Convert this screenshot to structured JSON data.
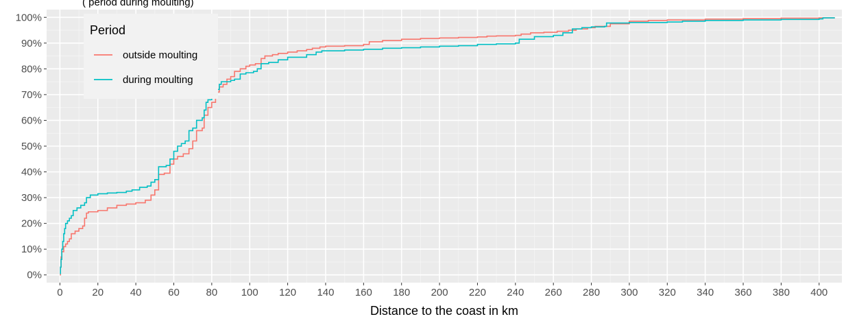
{
  "chart_data": {
    "type": "line",
    "title": "",
    "top_note": "(            period during moulting)",
    "xlabel": "Distance to the coast in km",
    "ylabel": "",
    "xlim": [
      -7,
      412
    ],
    "ylim": [
      -0.03,
      1.03
    ],
    "x_ticks": [
      0,
      20,
      40,
      60,
      80,
      100,
      120,
      140,
      160,
      180,
      200,
      220,
      240,
      260,
      280,
      300,
      320,
      340,
      360,
      380,
      400
    ],
    "y_ticks": [
      0,
      0.1,
      0.2,
      0.3,
      0.4,
      0.5,
      0.6,
      0.7,
      0.8,
      0.9,
      1.0
    ],
    "y_tick_labels": [
      "0%",
      "10%",
      "20%",
      "30%",
      "40%",
      "50%",
      "60%",
      "70%",
      "80%",
      "90%",
      "100%"
    ],
    "grid": true,
    "legend": {
      "title": "Period",
      "position": "top-left"
    },
    "series": [
      {
        "name": "outside moulting",
        "color": "#F8766D",
        "points": [
          [
            0,
            0.0
          ],
          [
            0.3,
            0.03
          ],
          [
            0.6,
            0.07
          ],
          [
            1,
            0.09
          ],
          [
            2,
            0.11
          ],
          [
            3,
            0.12
          ],
          [
            4,
            0.13
          ],
          [
            5,
            0.14
          ],
          [
            6,
            0.16
          ],
          [
            8,
            0.17
          ],
          [
            10,
            0.18
          ],
          [
            12,
            0.19
          ],
          [
            13,
            0.22
          ],
          [
            14,
            0.24
          ],
          [
            15,
            0.245
          ],
          [
            20,
            0.25
          ],
          [
            25,
            0.26
          ],
          [
            30,
            0.27
          ],
          [
            35,
            0.275
          ],
          [
            40,
            0.28
          ],
          [
            45,
            0.29
          ],
          [
            48,
            0.31
          ],
          [
            50,
            0.33
          ],
          [
            52,
            0.39
          ],
          [
            55,
            0.395
          ],
          [
            58,
            0.43
          ],
          [
            60,
            0.45
          ],
          [
            62,
            0.46
          ],
          [
            65,
            0.47
          ],
          [
            68,
            0.49
          ],
          [
            70,
            0.52
          ],
          [
            72,
            0.56
          ],
          [
            75,
            0.57
          ],
          [
            76,
            0.62
          ],
          [
            78,
            0.65
          ],
          [
            80,
            0.67
          ],
          [
            82,
            0.71
          ],
          [
            84,
            0.73
          ],
          [
            86,
            0.74
          ],
          [
            88,
            0.76
          ],
          [
            90,
            0.77
          ],
          [
            92,
            0.79
          ],
          [
            95,
            0.8
          ],
          [
            98,
            0.81
          ],
          [
            100,
            0.815
          ],
          [
            103,
            0.82
          ],
          [
            106,
            0.84
          ],
          [
            108,
            0.85
          ],
          [
            112,
            0.855
          ],
          [
            115,
            0.86
          ],
          [
            120,
            0.865
          ],
          [
            125,
            0.87
          ],
          [
            130,
            0.875
          ],
          [
            133,
            0.88
          ],
          [
            137,
            0.885
          ],
          [
            140,
            0.888
          ],
          [
            150,
            0.89
          ],
          [
            160,
            0.895
          ],
          [
            163,
            0.905
          ],
          [
            170,
            0.91
          ],
          [
            180,
            0.915
          ],
          [
            190,
            0.918
          ],
          [
            200,
            0.92
          ],
          [
            210,
            0.922
          ],
          [
            220,
            0.924
          ],
          [
            225,
            0.927
          ],
          [
            230,
            0.928
          ],
          [
            240,
            0.93
          ],
          [
            243,
            0.935
          ],
          [
            248,
            0.94
          ],
          [
            255,
            0.942
          ],
          [
            262,
            0.946
          ],
          [
            268,
            0.95
          ],
          [
            272,
            0.955
          ],
          [
            278,
            0.96
          ],
          [
            282,
            0.965
          ],
          [
            290,
            0.975
          ],
          [
            300,
            0.985
          ],
          [
            310,
            0.988
          ],
          [
            320,
            0.99
          ],
          [
            340,
            0.993
          ],
          [
            360,
            0.995
          ],
          [
            380,
            0.997
          ],
          [
            400,
            0.998
          ],
          [
            408,
            1.0
          ]
        ]
      },
      {
        "name": "during moulting",
        "color": "#00BFC4",
        "points": [
          [
            0,
            0.005
          ],
          [
            0.3,
            0.03
          ],
          [
            0.6,
            0.06
          ],
          [
            1,
            0.1
          ],
          [
            1.5,
            0.13
          ],
          [
            2,
            0.16
          ],
          [
            2.5,
            0.18
          ],
          [
            3,
            0.2
          ],
          [
            4,
            0.21
          ],
          [
            5,
            0.22
          ],
          [
            6,
            0.23
          ],
          [
            7,
            0.25
          ],
          [
            9,
            0.26
          ],
          [
            11,
            0.27
          ],
          [
            13,
            0.28
          ],
          [
            14,
            0.3
          ],
          [
            16,
            0.31
          ],
          [
            20,
            0.315
          ],
          [
            25,
            0.318
          ],
          [
            30,
            0.32
          ],
          [
            35,
            0.325
          ],
          [
            38,
            0.33
          ],
          [
            42,
            0.34
          ],
          [
            46,
            0.345
          ],
          [
            48,
            0.36
          ],
          [
            50,
            0.37
          ],
          [
            52,
            0.42
          ],
          [
            56,
            0.425
          ],
          [
            58,
            0.45
          ],
          [
            60,
            0.48
          ],
          [
            62,
            0.5
          ],
          [
            64,
            0.51
          ],
          [
            66,
            0.52
          ],
          [
            68,
            0.56
          ],
          [
            70,
            0.57
          ],
          [
            72,
            0.6
          ],
          [
            75,
            0.61
          ],
          [
            76,
            0.64
          ],
          [
            77,
            0.67
          ],
          [
            78,
            0.68
          ],
          [
            80,
            0.7
          ],
          [
            82,
            0.72
          ],
          [
            84,
            0.74
          ],
          [
            85,
            0.75
          ],
          [
            90,
            0.755
          ],
          [
            92,
            0.76
          ],
          [
            95,
            0.78
          ],
          [
            98,
            0.785
          ],
          [
            102,
            0.79
          ],
          [
            104,
            0.8
          ],
          [
            106,
            0.82
          ],
          [
            110,
            0.825
          ],
          [
            115,
            0.835
          ],
          [
            120,
            0.845
          ],
          [
            130,
            0.855
          ],
          [
            135,
            0.865
          ],
          [
            138,
            0.87
          ],
          [
            150,
            0.873
          ],
          [
            160,
            0.876
          ],
          [
            170,
            0.88
          ],
          [
            180,
            0.882
          ],
          [
            190,
            0.885
          ],
          [
            200,
            0.888
          ],
          [
            210,
            0.89
          ],
          [
            220,
            0.895
          ],
          [
            230,
            0.897
          ],
          [
            240,
            0.9
          ],
          [
            242,
            0.915
          ],
          [
            250,
            0.925
          ],
          [
            260,
            0.93
          ],
          [
            265,
            0.94
          ],
          [
            270,
            0.955
          ],
          [
            275,
            0.96
          ],
          [
            280,
            0.963
          ],
          [
            287,
            0.965
          ],
          [
            288,
            0.978
          ],
          [
            300,
            0.98
          ],
          [
            320,
            0.982
          ],
          [
            328,
            0.985
          ],
          [
            340,
            0.988
          ],
          [
            360,
            0.99
          ],
          [
            380,
            0.992
          ],
          [
            400,
            0.994
          ],
          [
            402,
            0.998
          ],
          [
            408,
            1.0
          ]
        ]
      }
    ]
  }
}
